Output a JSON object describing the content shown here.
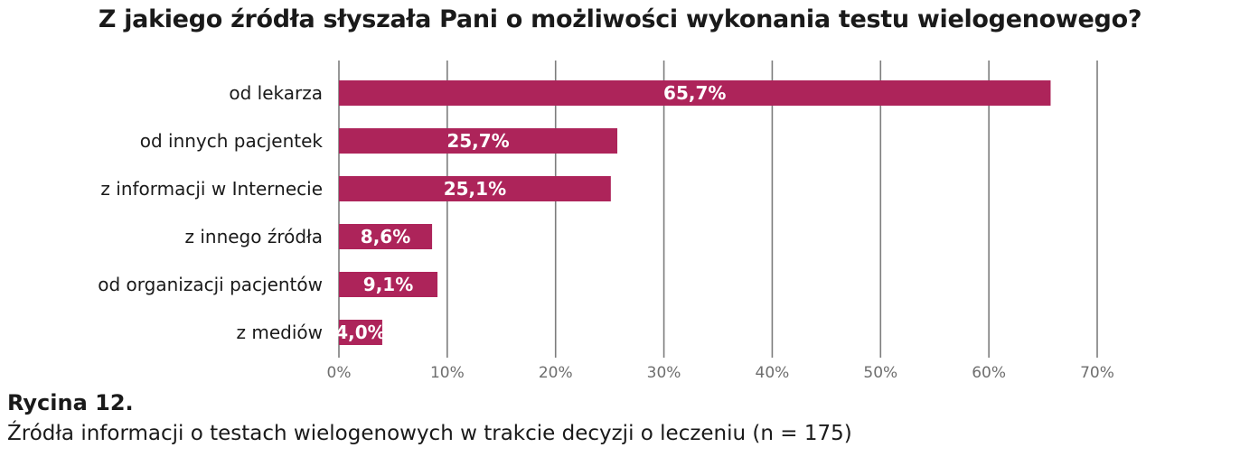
{
  "chart_data": {
    "type": "bar",
    "orientation": "horizontal",
    "title": "Z jakiego źródła słyszała Pani o możliwości wykonania testu wielogenowego?",
    "categories": [
      "od lekarza",
      "od innych pacjentek",
      "z informacji w Internecie",
      "z innego źródła",
      "od organizacji pacjentów",
      "z mediów"
    ],
    "values": [
      65.7,
      25.7,
      25.1,
      8.6,
      9.1,
      4.0
    ],
    "value_labels": [
      "65,7%",
      "25,7%",
      "25,1%",
      "8,6%",
      "9,1%",
      "4,0%"
    ],
    "xlim": [
      0,
      70
    ],
    "xticks": [
      0,
      10,
      20,
      30,
      40,
      50,
      60,
      70
    ],
    "xtick_labels": [
      "0%",
      "10%",
      "20%",
      "30%",
      "40%",
      "50%",
      "60%",
      "70%"
    ],
    "xlabel": "",
    "ylabel": "",
    "grid": "vertical",
    "legend": "none",
    "bar_color": "#ad245a",
    "label_color": "#ffffff"
  },
  "caption": {
    "number": "Rycina 12.",
    "text": "Źródła informacji o testach wielogenowych w trakcie decyzji o leczeniu (n = 175)"
  }
}
